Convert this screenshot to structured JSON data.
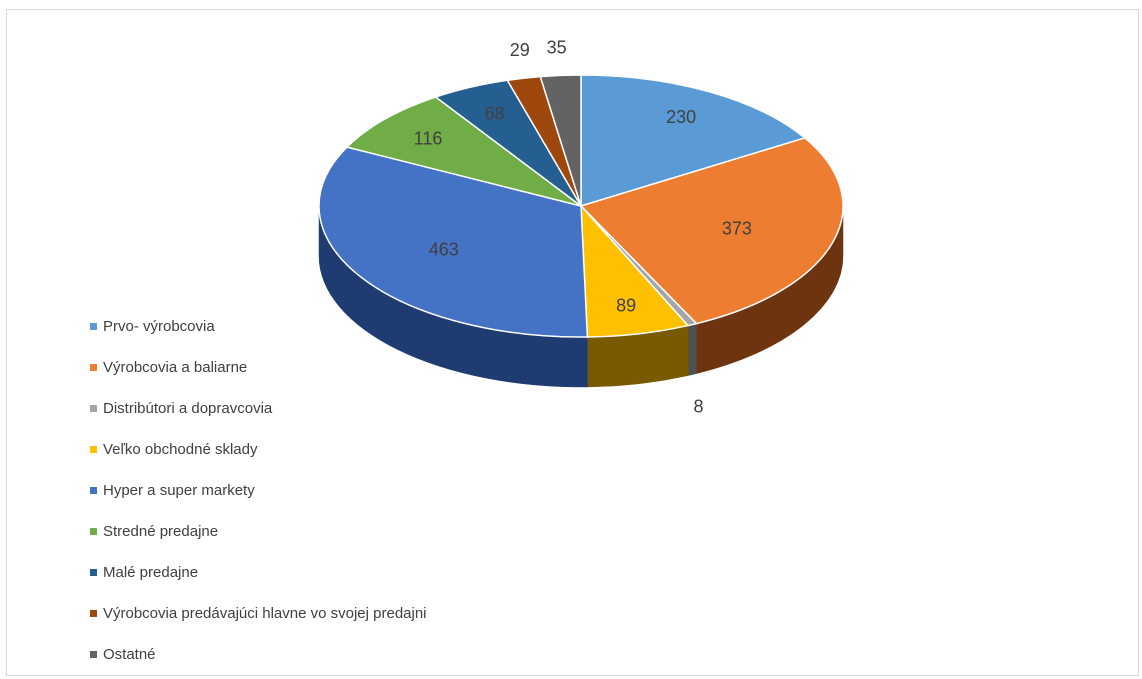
{
  "chart_data": {
    "type": "pie",
    "style": "3d",
    "legend_position": "left",
    "slices": [
      {
        "label": "Prvo- výrobcovia",
        "value": 230,
        "color": "#5B9BD5",
        "side_color": "#2E5E8E"
      },
      {
        "label": "Výrobcovia a baliarne",
        "value": 373,
        "color": "#ED7D31",
        "side_color": "#6E3410"
      },
      {
        "label": "Distribútori a dopravcovia",
        "value": 8,
        "color": "#A5A5A5",
        "side_color": "#4F4F4F"
      },
      {
        "label": "Veľko obchodné sklady",
        "value": 89,
        "color": "#FFC000",
        "side_color": "#7A5A00"
      },
      {
        "label": "Hyper a super markety",
        "value": 463,
        "color": "#4472C4",
        "side_color": "#1F3C72"
      },
      {
        "label": "Stredné predajne",
        "value": 116,
        "color": "#70AD47",
        "side_color": "#3A6522"
      },
      {
        "label": "Malé  predajne",
        "value": 68,
        "color": "#255E91",
        "side_color": "#123350"
      },
      {
        "label": "Výrobcovia predávajúci hlavne vo svojej predajni",
        "value": 29,
        "color": "#9E480E",
        "side_color": "#4F2306"
      },
      {
        "label": "Ostatné",
        "value": 35,
        "color": "#636363",
        "side_color": "#333333"
      }
    ]
  }
}
